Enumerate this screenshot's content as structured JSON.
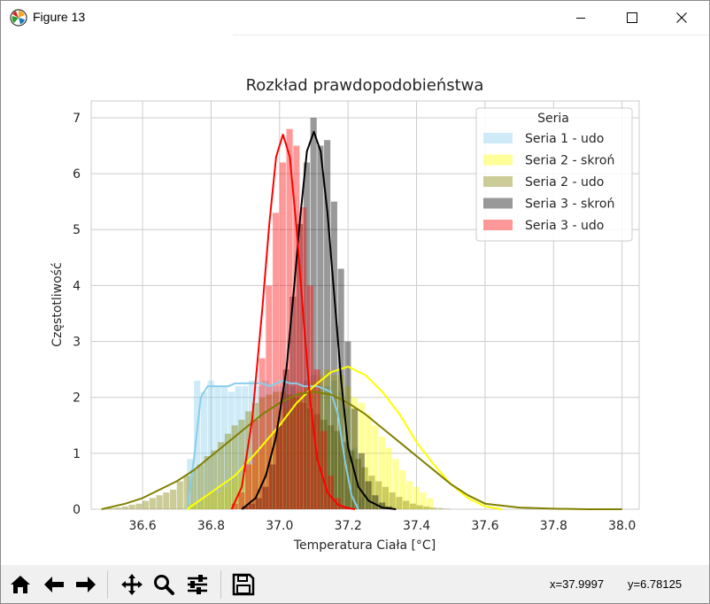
{
  "window": {
    "title": "Figure 13"
  },
  "toolbar": {
    "icons": [
      "home-icon",
      "back-arrow-icon",
      "forward-arrow-icon",
      "pan-icon",
      "zoom-icon",
      "configure-subplots-icon",
      "save-icon"
    ],
    "coord_x": "x=37.9997",
    "coord_y": "y=6.78125"
  },
  "chart_data": {
    "type": "histogram",
    "title": "Rozkład prawdopodobieństwa",
    "xlabel": "Temperatura Ciała [°C]",
    "ylabel": "Częstotliwość",
    "xlim": [
      36.45,
      38.05
    ],
    "ylim": [
      0,
      7.3
    ],
    "xticks": [
      "36.6",
      "36.8",
      "37.0",
      "37.2",
      "37.4",
      "37.6",
      "37.8",
      "38.0"
    ],
    "yticks": [
      "0",
      "1",
      "2",
      "3",
      "4",
      "5",
      "6",
      "7"
    ],
    "grid": true,
    "legend": {
      "title": "Seria",
      "position": "top-right"
    },
    "series": [
      {
        "name": "Seria 1 - udo",
        "color": "#87ceeb",
        "bin_start": 36.73,
        "bin_width": 0.02,
        "hist": [
          0.9,
          2.3,
          2.1,
          2.3,
          2.2,
          2.2,
          2.1,
          2.2,
          2.2,
          2.3,
          2.2,
          2.3,
          2.2,
          2.2,
          2.3,
          2.2,
          2.1,
          2.3,
          2.4,
          2.2,
          2.2,
          2.3,
          2.1,
          1.8,
          1.1,
          0.2
        ],
        "kde_x": [
          36.73,
          36.75,
          36.77,
          36.79,
          36.81,
          36.83,
          36.85,
          36.87,
          36.89,
          36.91,
          36.93,
          36.95,
          36.97,
          36.99,
          37.01,
          37.03,
          37.05,
          37.07,
          37.09,
          37.11,
          37.13,
          37.15,
          37.17,
          37.19,
          37.21,
          37.23
        ],
        "kde_y": [
          0.0,
          0.9,
          2.0,
          2.2,
          2.2,
          2.2,
          2.2,
          2.25,
          2.25,
          2.25,
          2.25,
          2.25,
          2.2,
          2.25,
          2.3,
          2.25,
          2.25,
          2.2,
          2.2,
          2.2,
          2.15,
          2.1,
          1.7,
          0.9,
          0.25,
          0.0
        ]
      },
      {
        "name": "Seria 2 - skroń",
        "color": "#ffff00",
        "bin_start": 36.73,
        "bin_width": 0.02,
        "hist": [
          0.1,
          0.1,
          0.2,
          0.3,
          0.3,
          0.4,
          0.5,
          0.6,
          0.7,
          0.8,
          1.0,
          1.2,
          1.4,
          1.6,
          1.8,
          2.0,
          2.1,
          2.2,
          2.3,
          2.4,
          2.5,
          2.4,
          2.4,
          2.2,
          2.0,
          1.9,
          1.7,
          1.5,
          1.3,
          1.1,
          0.9,
          0.7,
          0.5,
          0.4,
          0.3,
          0.2
        ],
        "kde_x": [
          36.73,
          36.8,
          36.87,
          36.93,
          37.0,
          37.05,
          37.1,
          37.15,
          37.2,
          37.25,
          37.3,
          37.35,
          37.4,
          37.45,
          37.5,
          37.55,
          37.6,
          37.65
        ],
        "kde_y": [
          0.0,
          0.3,
          0.6,
          1.0,
          1.5,
          1.9,
          2.2,
          2.45,
          2.55,
          2.4,
          2.1,
          1.7,
          1.2,
          0.8,
          0.45,
          0.2,
          0.05,
          0.0
        ]
      },
      {
        "name": "Seria 2 - udo",
        "color": "#808000",
        "bin_start": 36.5,
        "bin_width": 0.02,
        "hist": [
          0.02,
          0.03,
          0.05,
          0.08,
          0.1,
          0.15,
          0.2,
          0.25,
          0.3,
          0.35,
          0.5,
          0.6,
          0.7,
          0.8,
          0.95,
          1.05,
          1.2,
          1.35,
          1.5,
          1.6,
          1.75,
          1.9,
          2.0,
          2.05,
          2.1,
          2.1,
          2.05,
          2.0,
          1.9,
          1.8,
          1.7,
          1.6,
          1.5,
          1.4,
          1.2,
          1.05,
          0.9,
          0.75,
          0.6,
          0.5,
          0.4,
          0.3,
          0.22,
          0.15,
          0.1,
          0.07,
          0.05,
          0.03,
          0.02,
          0.01
        ],
        "kde_x": [
          36.48,
          36.55,
          36.6,
          36.65,
          36.7,
          36.75,
          36.8,
          36.85,
          36.9,
          36.95,
          37.0,
          37.05,
          37.1,
          37.15,
          37.2,
          37.25,
          37.3,
          37.35,
          37.4,
          37.45,
          37.5,
          37.55,
          37.6,
          37.7,
          37.8,
          37.9,
          38.0
        ],
        "kde_y": [
          0.0,
          0.1,
          0.2,
          0.35,
          0.5,
          0.7,
          0.95,
          1.2,
          1.45,
          1.7,
          1.9,
          2.05,
          2.1,
          2.05,
          1.9,
          1.7,
          1.45,
          1.2,
          0.95,
          0.7,
          0.45,
          0.25,
          0.1,
          0.03,
          0.01,
          0.0,
          0.0
        ]
      },
      {
        "name": "Seria 3 - skroń",
        "color": "#000000",
        "bin_start": 36.89,
        "bin_width": 0.02,
        "hist": [
          0.05,
          0.1,
          0.2,
          0.4,
          0.8,
          1.5,
          2.5,
          3.8,
          5.1,
          6.2,
          7.0,
          6.5,
          6.6,
          5.5,
          4.3,
          3.0,
          1.8,
          1.0,
          0.5,
          0.25,
          0.12,
          0.05
        ],
        "kde_x": [
          36.89,
          36.93,
          36.96,
          36.99,
          37.02,
          37.04,
          37.06,
          37.08,
          37.1,
          37.12,
          37.14,
          37.16,
          37.18,
          37.2,
          37.23,
          37.26,
          37.3,
          37.34
        ],
        "kde_y": [
          0.0,
          0.2,
          0.6,
          1.3,
          2.5,
          3.8,
          5.2,
          6.4,
          6.75,
          6.4,
          5.3,
          3.8,
          2.3,
          1.1,
          0.4,
          0.15,
          0.03,
          0.0
        ]
      },
      {
        "name": "Seria 3 - udo",
        "color": "#ff0000",
        "bin_start": 36.86,
        "bin_width": 0.02,
        "hist": [
          0.1,
          0.3,
          0.8,
          1.6,
          2.7,
          4.0,
          5.3,
          6.2,
          6.8,
          6.5,
          5.4,
          4.0,
          2.5,
          1.4,
          0.6,
          0.2,
          0.05,
          0.02
        ],
        "kde_x": [
          36.86,
          36.89,
          36.92,
          36.95,
          36.97,
          36.99,
          37.01,
          37.03,
          37.05,
          37.07,
          37.09,
          37.11,
          37.14,
          37.17,
          37.2,
          37.22
        ],
        "kde_y": [
          0.0,
          0.4,
          1.6,
          3.6,
          5.1,
          6.3,
          6.7,
          6.3,
          5.0,
          3.4,
          1.9,
          0.9,
          0.3,
          0.08,
          0.02,
          0.0
        ]
      }
    ]
  }
}
